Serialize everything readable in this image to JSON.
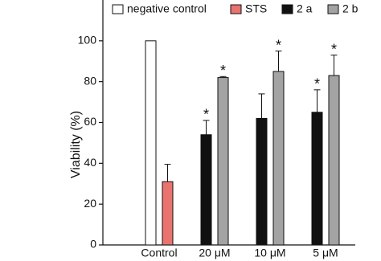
{
  "chart_data": {
    "type": "bar",
    "y_label": "Viability (%)",
    "categories": [
      "Control",
      "20 μM",
      "10 μM",
      "5 μM"
    ],
    "series": [
      {
        "name": "negative control",
        "color": "#ffffff",
        "values": [
          100,
          null,
          null,
          null
        ],
        "errors": [
          null,
          null,
          null,
          null
        ],
        "annotations": [
          null,
          null,
          null,
          null
        ]
      },
      {
        "name": "STS",
        "color": "#e8736f",
        "values": [
          31,
          null,
          null,
          null
        ],
        "errors": [
          8.5,
          null,
          null,
          null
        ],
        "annotations": [
          null,
          null,
          null,
          null
        ]
      },
      {
        "name": "2 a",
        "color": "#111111",
        "values": [
          null,
          54,
          62,
          65
        ],
        "errors": [
          null,
          7,
          12,
          11
        ],
        "annotations": [
          null,
          "*",
          null,
          "*"
        ]
      },
      {
        "name": "2 b",
        "color": "#a3a3a3",
        "values": [
          null,
          82,
          85,
          83
        ],
        "errors": [
          null,
          0.5,
          10,
          10
        ],
        "annotations": [
          null,
          "*",
          "*",
          "*"
        ]
      }
    ],
    "ylim": [
      0,
      120
    ],
    "yticks": [
      0,
      20,
      40,
      60,
      80,
      100
    ],
    "grid": false,
    "legend": "top"
  }
}
